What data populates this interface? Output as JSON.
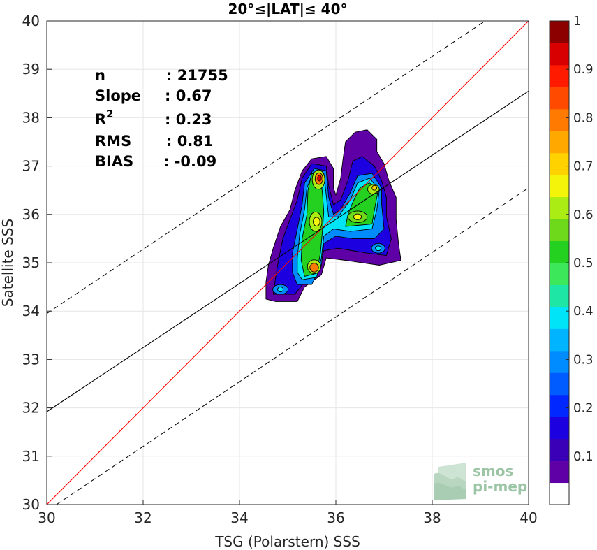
{
  "chart_data": {
    "type": "contour-density-scatter",
    "title": "20°≤|LAT|≤ 40°",
    "xlabel": "TSG (Polarstern) SSS",
    "ylabel": "Satellite SSS",
    "xlim": [
      30,
      40
    ],
    "ylim": [
      30,
      40
    ],
    "xticks": [
      "30",
      "32",
      "34",
      "36",
      "38",
      "40"
    ],
    "yticks": [
      "30",
      "31",
      "32",
      "33",
      "34",
      "35",
      "36",
      "37",
      "38",
      "39",
      "40"
    ],
    "grid": true,
    "stats": [
      {
        "key": "n",
        "value": ": 21755"
      },
      {
        "key": "Slope",
        "value": ": 0.67"
      },
      {
        "key": "R",
        "sup": "2",
        "value": ": 0.23"
      },
      {
        "key": "RMS",
        "value": ": 0.81"
      },
      {
        "key": "BIAS",
        "value": ": -0.09"
      }
    ],
    "lines": {
      "one_to_one": {
        "slope": 1,
        "intercept": 0,
        "color": "#ff0000"
      },
      "regression": {
        "x": [
          30,
          40
        ],
        "y": [
          31.92,
          38.55
        ],
        "color": "#000000"
      },
      "upper_envelope": {
        "x": [
          30,
          39.1
        ],
        "y": [
          33.95,
          40.0
        ],
        "style": "dashed"
      },
      "lower_envelope": {
        "x": [
          30.2,
          40
        ],
        "y": [
          30.0,
          36.55
        ],
        "style": "dashed"
      }
    },
    "density_peaks": [
      {
        "x": 35.65,
        "y": 36.75,
        "level": 0.95
      },
      {
        "x": 35.6,
        "y": 35.85,
        "level": 0.65
      },
      {
        "x": 35.55,
        "y": 34.9,
        "level": 0.8
      },
      {
        "x": 36.8,
        "y": 36.55,
        "level": 0.55
      },
      {
        "x": 36.45,
        "y": 35.95,
        "level": 0.55
      },
      {
        "x": 34.85,
        "y": 34.45,
        "level": 0.35
      },
      {
        "x": 36.9,
        "y": 35.3,
        "level": 0.3
      }
    ],
    "colorbar": {
      "ticks": [
        "0.1",
        "0.2",
        "0.3",
        "0.4",
        "0.5",
        "0.6",
        "0.7",
        "0.8",
        "0.9",
        "1"
      ],
      "range": [
        0,
        1
      ],
      "colors": [
        "#ffffff",
        "#5e00a6",
        "#3a00b8",
        "#1c00e0",
        "#0028ff",
        "#005cff",
        "#008cff",
        "#00b4ff",
        "#00e4f8",
        "#1ee6a4",
        "#3ce85a",
        "#24d020",
        "#6ed81a",
        "#aaec14",
        "#f4f40a",
        "#ffd200",
        "#ffa800",
        "#ff7a00",
        "#ff4a00",
        "#ff1a00",
        "#d80000",
        "#8c0000"
      ]
    }
  },
  "watermark": {
    "line1": "smos",
    "line2": "pi-mep"
  }
}
